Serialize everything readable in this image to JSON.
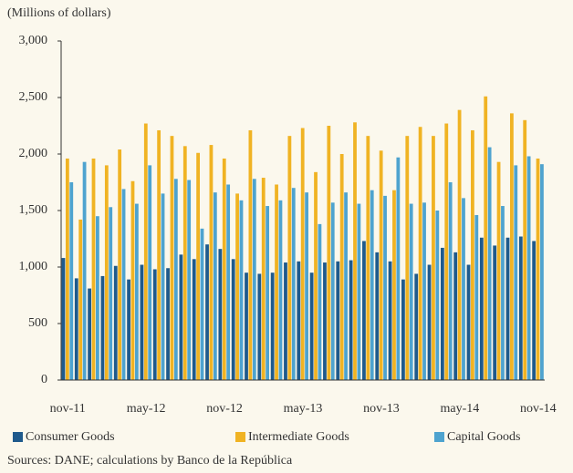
{
  "chart_data": {
    "type": "bar",
    "y_label": "(Millions of dollars)",
    "source": "Sources: DANE; calculations by Banco de la República",
    "categories": [
      "nov-11",
      null,
      null,
      null,
      null,
      null,
      "may-12",
      null,
      null,
      null,
      null,
      null,
      "nov-12",
      null,
      null,
      null,
      null,
      null,
      "may-13",
      null,
      null,
      null,
      null,
      null,
      "nov-13",
      null,
      null,
      null,
      null,
      null,
      "may-14",
      null,
      null,
      null,
      null,
      null,
      "nov-14"
    ],
    "series": [
      {
        "name": "Consumer Goods",
        "color": "#1f5a8c",
        "values": [
          1080,
          900,
          810,
          920,
          1010,
          890,
          1020,
          980,
          990,
          1110,
          1070,
          1200,
          1160,
          1070,
          950,
          940,
          950,
          1040,
          1050,
          950,
          1040,
          1050,
          1060,
          1230,
          1130,
          1050,
          890,
          940,
          1020,
          1170,
          1130,
          1020,
          1260,
          1190,
          1260,
          1270,
          1230
        ]
      },
      {
        "name": "Intermediate Goods",
        "color": "#f0b323",
        "values": [
          1960,
          1420,
          1960,
          1900,
          2040,
          1760,
          2270,
          2210,
          2160,
          2070,
          2010,
          2080,
          1960,
          1650,
          2210,
          1790,
          1730,
          2160,
          2230,
          1840,
          2250,
          2000,
          2280,
          2160,
          2030,
          1680,
          2160,
          2240,
          2160,
          2270,
          2390,
          2210,
          2510,
          1930,
          2360,
          2300,
          1960
        ]
      },
      {
        "name": "Capital Goods",
        "color": "#4ea3cf",
        "values": [
          1750,
          1930,
          1450,
          1530,
          1690,
          1560,
          1900,
          1650,
          1780,
          1770,
          1340,
          1660,
          1730,
          1590,
          1780,
          1540,
          1590,
          1700,
          1660,
          1380,
          1570,
          1660,
          1560,
          1680,
          1630,
          1970,
          1560,
          1570,
          1500,
          1750,
          1610,
          1460,
          2060,
          1540,
          1900,
          1980,
          1910
        ]
      }
    ],
    "ylim": [
      0,
      3000
    ],
    "yticks": [
      0,
      500,
      {
        "value": 1000,
        "label": "1,000"
      },
      {
        "value": 1500,
        "label": "1,500"
      },
      {
        "value": 2000,
        "label": "2,000"
      },
      {
        "value": 2500,
        "label": "2,500"
      },
      {
        "value": 3000,
        "label": "3,000"
      }
    ]
  }
}
